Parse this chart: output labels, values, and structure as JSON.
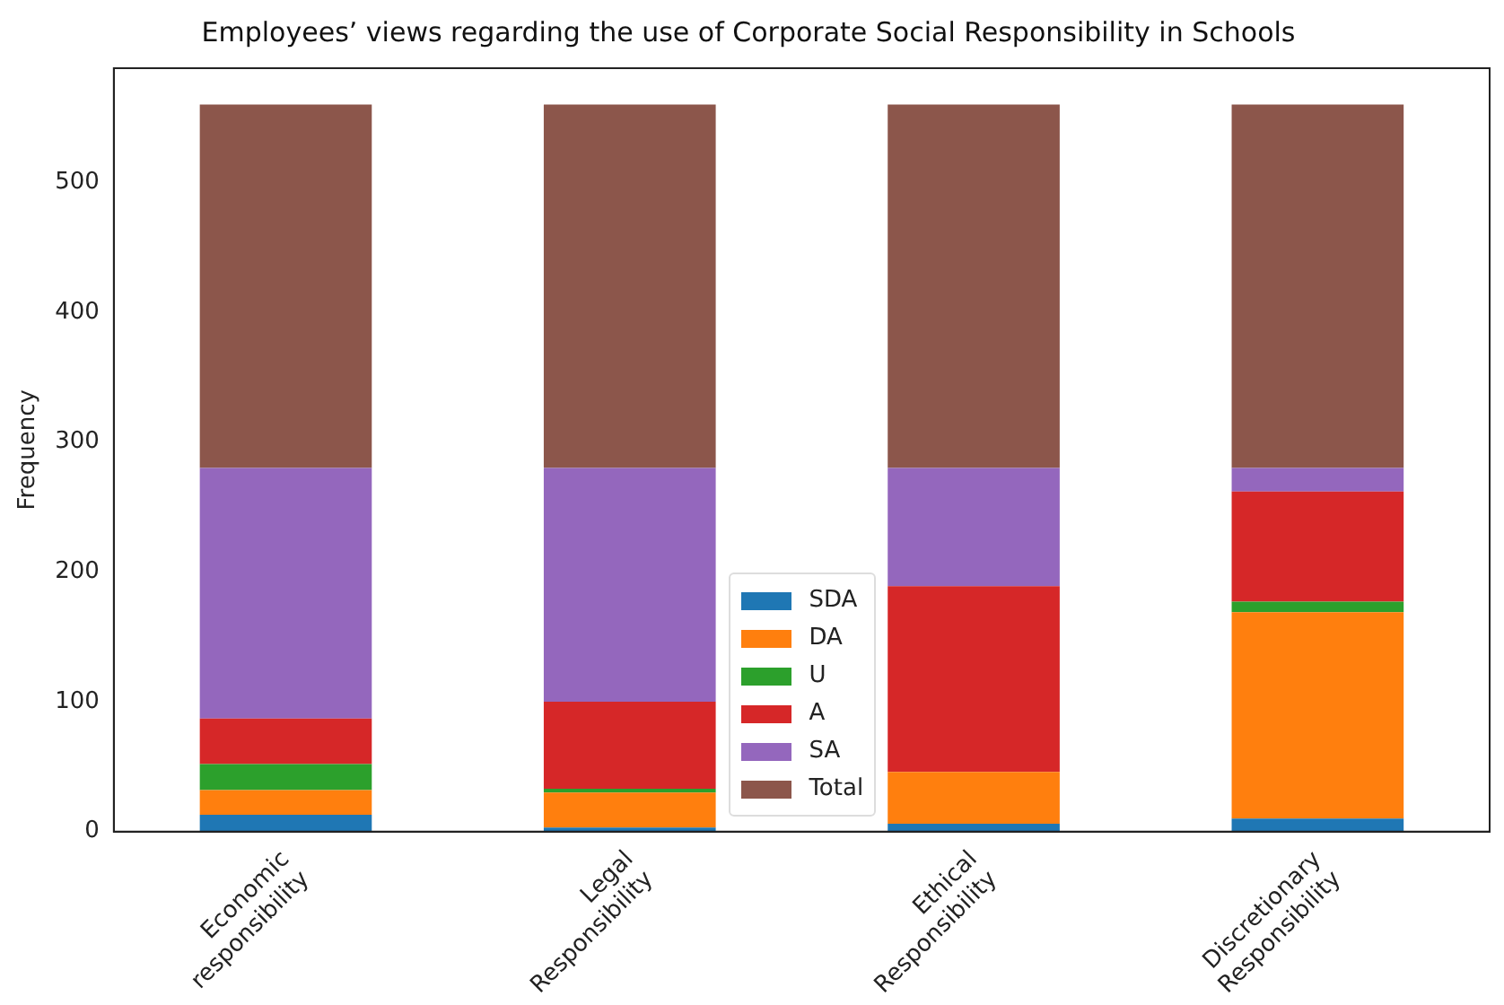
{
  "chart_data": {
    "type": "bar",
    "title": "Employees’ views regarding the use of Corporate Social Responsibility in Schools",
    "ylabel": "Frequency",
    "categories": [
      "Economic\nresponsibility",
      "Legal\nResponsibility",
      "Ethical\nResponsibility",
      "Discretionary\nResponsibility"
    ],
    "stacked": true,
    "ylim": [
      0,
      588
    ],
    "yticks": [
      0,
      100,
      200,
      300,
      400,
      500
    ],
    "grid": false,
    "legend": "bottom",
    "series": [
      {
        "name": "SDA",
        "color": "#1f77b4",
        "values": [
          13,
          3,
          6,
          10
        ]
      },
      {
        "name": "DA",
        "color": "#ff7f0e",
        "values": [
          19,
          27,
          40,
          159
        ]
      },
      {
        "name": "U",
        "color": "#2ca02c",
        "values": [
          20,
          3,
          0,
          8
        ]
      },
      {
        "name": "A",
        "color": "#d62728",
        "values": [
          35,
          67,
          143,
          85
        ]
      },
      {
        "name": "SA",
        "color": "#9467bd",
        "values": [
          193,
          180,
          91,
          18
        ]
      },
      {
        "name": "Total",
        "color": "#8c564b",
        "values": [
          280,
          280,
          280,
          280
        ]
      }
    ]
  }
}
